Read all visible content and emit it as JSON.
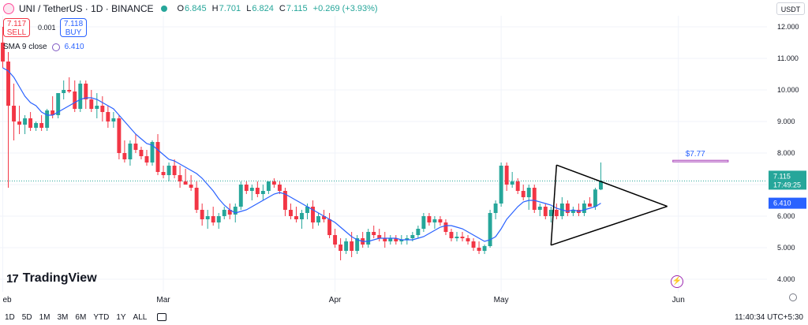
{
  "header": {
    "symbol": "UNI / TetherUS · 1D · BINANCE",
    "open_label": "O",
    "open": "6.845",
    "high_label": "H",
    "high": "7.701",
    "low_label": "L",
    "low": "6.824",
    "close_label": "C",
    "close": "7.115",
    "change": "+0.269 (+3.93%)"
  },
  "trade": {
    "sell_price": "7.117",
    "sell_label": "SELL",
    "spread": "0.001",
    "buy_price": "7.118",
    "buy_label": "BUY"
  },
  "indicator": {
    "label": "SMA 9 close",
    "value": "6.410"
  },
  "currency": "USDT",
  "logo": {
    "mark": "17",
    "text": "TradingView"
  },
  "bottom": {
    "ranges": [
      "1D",
      "5D",
      "1M",
      "3M",
      "6M",
      "YTD",
      "1Y",
      "ALL"
    ],
    "clock": "11:40:34 UTC+5:30"
  },
  "colors": {
    "up": "#26a69a",
    "down": "#f23645",
    "sma": "#2962ff",
    "grid": "#f0f3fa",
    "text": "#131722"
  },
  "chart_data": {
    "type": "candlestick",
    "title": "UNI / TetherUS · 1D · BINANCE",
    "yaxis": {
      "ticks": [
        "12.000",
        "11.000",
        "10.000",
        "9.000",
        "8.000",
        "7.000",
        "6.000",
        "5.000",
        "4.000"
      ],
      "tick_values": [
        12,
        11,
        10,
        9,
        8,
        7,
        6,
        5,
        4
      ],
      "range": [
        3.6,
        12.35
      ]
    },
    "xaxis": {
      "labels": [
        "eb",
        "Mar",
        "Apr",
        "May",
        "Jun"
      ],
      "label_index": [
        0,
        29,
        60,
        90,
        122
      ],
      "range_index": [
        -0.5,
        138
      ]
    },
    "last_price": {
      "value": 7.115,
      "label": "7.115",
      "countdown": "17:49:25"
    },
    "sma_badge": {
      "value": 6.41,
      "label": "6.410"
    },
    "target": {
      "label": "$7.77",
      "value": 7.77,
      "start_index": 121,
      "end_index": 131,
      "low": 7.72
    },
    "triangle": [
      {
        "from": [
          100,
          7.62
        ],
        "to": [
          120,
          6.31
        ]
      },
      {
        "from": [
          99,
          5.08
        ],
        "to": [
          120,
          6.31
        ]
      },
      {
        "from": [
          100,
          7.62
        ],
        "to": [
          99,
          5.08
        ]
      }
    ],
    "ohlc": [
      [
        11.5,
        12.0,
        10.7,
        10.9
      ],
      [
        10.9,
        11.2,
        6.9,
        9.5
      ],
      [
        9.5,
        10.2,
        8.4,
        9.0
      ],
      [
        9.0,
        9.5,
        8.6,
        8.9
      ],
      [
        8.9,
        9.2,
        8.6,
        9.1
      ],
      [
        9.1,
        9.3,
        8.7,
        8.8
      ],
      [
        8.8,
        9.0,
        8.7,
        8.95
      ],
      [
        8.95,
        9.2,
        8.7,
        8.8
      ],
      [
        8.8,
        9.4,
        8.7,
        9.35
      ],
      [
        9.35,
        9.8,
        9.1,
        9.2
      ],
      [
        9.2,
        9.9,
        9.1,
        9.9
      ],
      [
        9.9,
        10.3,
        9.7,
        10.0
      ],
      [
        10.0,
        10.4,
        9.9,
        9.95
      ],
      [
        9.95,
        10.3,
        9.3,
        9.4
      ],
      [
        9.4,
        10.3,
        9.3,
        10.2
      ],
      [
        10.2,
        10.3,
        9.4,
        9.7
      ],
      [
        9.7,
        10.0,
        9.3,
        9.4
      ],
      [
        9.4,
        9.9,
        9.1,
        9.5
      ],
      [
        9.5,
        9.8,
        9.0,
        9.3
      ],
      [
        9.3,
        9.5,
        8.8,
        9.0
      ],
      [
        9.0,
        9.3,
        8.8,
        9.1
      ],
      [
        9.1,
        9.2,
        7.8,
        8.0
      ],
      [
        8.0,
        8.4,
        7.7,
        7.8
      ],
      [
        7.8,
        8.4,
        7.6,
        8.3
      ],
      [
        8.3,
        8.6,
        8.0,
        8.1
      ],
      [
        8.1,
        8.2,
        7.8,
        7.9
      ],
      [
        7.9,
        8.1,
        7.6,
        7.7
      ],
      [
        7.7,
        8.4,
        7.6,
        8.35
      ],
      [
        8.35,
        8.6,
        7.3,
        7.4
      ],
      [
        7.4,
        7.6,
        7.2,
        7.3
      ],
      [
        7.3,
        7.7,
        7.1,
        7.6
      ],
      [
        7.6,
        7.8,
        7.2,
        7.3
      ],
      [
        7.3,
        7.6,
        6.9,
        7.1
      ],
      [
        7.1,
        7.5,
        7.0,
        7.0
      ],
      [
        7.0,
        7.3,
        6.8,
        6.9
      ],
      [
        6.9,
        7.1,
        6.1,
        6.2
      ],
      [
        6.2,
        6.4,
        5.7,
        5.9
      ],
      [
        5.9,
        6.2,
        5.6,
        6.0
      ],
      [
        6.0,
        6.3,
        5.7,
        5.8
      ],
      [
        5.8,
        6.1,
        5.6,
        6.0
      ],
      [
        6.0,
        6.3,
        5.9,
        6.2
      ],
      [
        6.2,
        6.4,
        5.9,
        6.05
      ],
      [
        6.05,
        6.4,
        5.8,
        6.3
      ],
      [
        6.3,
        7.1,
        6.2,
        7.0
      ],
      [
        7.0,
        7.1,
        6.7,
        6.8
      ],
      [
        6.8,
        7.0,
        6.5,
        6.9
      ],
      [
        6.9,
        7.1,
        6.6,
        6.7
      ],
      [
        6.7,
        7.0,
        6.5,
        6.8
      ],
      [
        6.8,
        7.1,
        6.7,
        7.1
      ],
      [
        7.1,
        7.2,
        6.9,
        7.0
      ],
      [
        7.0,
        7.1,
        6.7,
        6.8
      ],
      [
        6.8,
        6.9,
        6.0,
        6.2
      ],
      [
        6.2,
        6.4,
        5.9,
        6.0
      ],
      [
        6.0,
        6.3,
        5.8,
        5.9
      ],
      [
        5.9,
        6.2,
        5.6,
        6.1
      ],
      [
        6.1,
        6.4,
        5.9,
        6.3
      ],
      [
        6.3,
        6.5,
        5.6,
        5.8
      ],
      [
        5.8,
        6.1,
        5.7,
        6.0
      ],
      [
        6.0,
        6.2,
        5.8,
        5.9
      ],
      [
        5.9,
        6.1,
        5.3,
        5.4
      ],
      [
        5.4,
        5.6,
        5.0,
        5.1
      ],
      [
        5.1,
        5.3,
        4.6,
        4.9
      ],
      [
        4.9,
        5.3,
        4.8,
        5.2
      ],
      [
        5.2,
        5.5,
        4.7,
        4.9
      ],
      [
        4.9,
        5.4,
        4.8,
        5.3
      ],
      [
        5.3,
        5.5,
        5.0,
        5.1
      ],
      [
        5.1,
        5.6,
        5.0,
        5.5
      ],
      [
        5.5,
        5.7,
        5.3,
        5.4
      ],
      [
        5.4,
        5.6,
        5.2,
        5.3
      ],
      [
        5.3,
        5.5,
        5.0,
        5.2
      ],
      [
        5.2,
        5.4,
        5.1,
        5.3
      ],
      [
        5.3,
        5.4,
        5.1,
        5.2
      ],
      [
        5.2,
        5.4,
        5.1,
        5.25
      ],
      [
        5.25,
        5.4,
        5.1,
        5.3
      ],
      [
        5.3,
        5.5,
        5.2,
        5.4
      ],
      [
        5.4,
        5.7,
        5.3,
        5.6
      ],
      [
        5.6,
        6.1,
        5.5,
        6.0
      ],
      [
        6.0,
        6.1,
        5.7,
        5.8
      ],
      [
        5.8,
        6.0,
        5.6,
        5.9
      ],
      [
        5.9,
        6.0,
        5.7,
        5.8
      ],
      [
        5.8,
        5.9,
        5.4,
        5.5
      ],
      [
        5.5,
        5.6,
        5.2,
        5.3
      ],
      [
        5.3,
        5.5,
        5.2,
        5.35
      ],
      [
        5.35,
        5.5,
        5.2,
        5.3
      ],
      [
        5.3,
        5.4,
        5.1,
        5.2
      ],
      [
        5.2,
        5.3,
        4.9,
        5.0
      ],
      [
        5.0,
        5.2,
        4.8,
        4.9
      ],
      [
        4.9,
        5.1,
        4.8,
        5.05
      ],
      [
        5.05,
        6.2,
        5.0,
        6.1
      ],
      [
        6.1,
        6.5,
        5.9,
        6.4
      ],
      [
        6.4,
        7.7,
        6.3,
        7.6
      ],
      [
        7.6,
        7.7,
        6.8,
        7.0
      ],
      [
        7.0,
        7.4,
        6.9,
        7.1
      ],
      [
        7.1,
        7.2,
        6.7,
        6.8
      ],
      [
        6.8,
        7.0,
        6.5,
        6.6
      ],
      [
        6.6,
        7.0,
        6.2,
        6.9
      ],
      [
        6.9,
        7.0,
        6.1,
        6.2
      ],
      [
        6.2,
        6.4,
        6.0,
        6.3
      ],
      [
        6.3,
        6.4,
        5.9,
        6.0
      ],
      [
        6.0,
        6.3,
        5.8,
        6.2
      ],
      [
        6.2,
        6.4,
        5.9,
        6.0
      ],
      [
        6.0,
        6.6,
        5.9,
        6.4
      ],
      [
        6.4,
        6.5,
        6.0,
        6.1
      ],
      [
        6.1,
        6.3,
        6.0,
        6.2
      ],
      [
        6.2,
        6.4,
        6.0,
        6.1
      ],
      [
        6.1,
        6.5,
        6.0,
        6.4
      ],
      [
        6.4,
        6.6,
        6.3,
        6.3
      ],
      [
        6.3,
        6.9,
        6.2,
        6.845
      ],
      [
        6.845,
        7.701,
        6.824,
        7.115
      ]
    ],
    "ohlc_start_index": 0,
    "sma": [
      10.7,
      10.6,
      10.4,
      10.1,
      9.8,
      9.6,
      9.5,
      9.3,
      9.2,
      9.2,
      9.3,
      9.4,
      9.5,
      9.6,
      9.7,
      9.75,
      9.75,
      9.7,
      9.6,
      9.5,
      9.4,
      9.2,
      9.0,
      8.8,
      8.6,
      8.45,
      8.3,
      8.25,
      8.1,
      7.95,
      7.8,
      7.75,
      7.65,
      7.55,
      7.45,
      7.35,
      7.2,
      7.0,
      6.8,
      6.55,
      6.35,
      6.2,
      6.1,
      6.15,
      6.2,
      6.3,
      6.4,
      6.5,
      6.6,
      6.7,
      6.75,
      6.7,
      6.6,
      6.5,
      6.4,
      6.3,
      6.2,
      6.1,
      6.0,
      5.9,
      5.8,
      5.65,
      5.5,
      5.35,
      5.25,
      5.2,
      5.2,
      5.25,
      5.3,
      5.3,
      5.3,
      5.3,
      5.25,
      5.25,
      5.25,
      5.3,
      5.35,
      5.45,
      5.55,
      5.65,
      5.7,
      5.7,
      5.65,
      5.6,
      5.5,
      5.4,
      5.3,
      5.2,
      5.25,
      5.35,
      5.6,
      5.9,
      6.1,
      6.3,
      6.45,
      6.5,
      6.5,
      6.45,
      6.4,
      6.35,
      6.25,
      6.2,
      6.15,
      6.2,
      6.15,
      6.2,
      6.25,
      6.3,
      6.41
    ]
  }
}
